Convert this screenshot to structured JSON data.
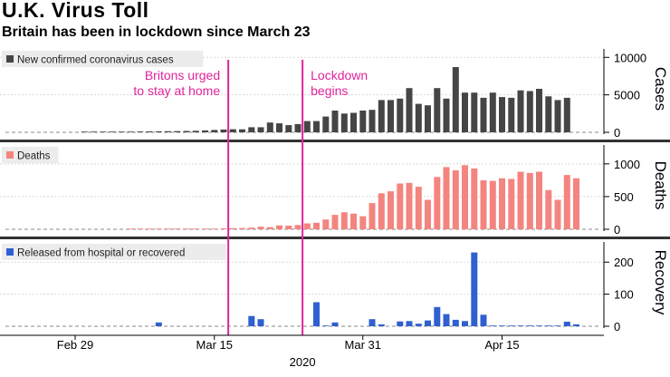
{
  "header": {
    "title": "U.K. Virus Toll",
    "subtitle": "Britain has been in lockdown since March 23"
  },
  "colors": {
    "cases": "#454545",
    "deaths": "#f4847f",
    "recovery": "#2f5fd0",
    "annotation": "#e0249a",
    "divider": "#333333",
    "grid": "#d9d9d9"
  },
  "chart_data": {
    "type": "bar",
    "x_label": "2020",
    "x_ticks": [
      {
        "label": "Feb 29",
        "day": 0
      },
      {
        "label": "Mar 15",
        "day": 15
      },
      {
        "label": "Mar 31",
        "day": 31
      },
      {
        "label": "Apr 15",
        "day": 46
      }
    ],
    "x_domain_days": [
      -4,
      56
    ],
    "annotations": [
      {
        "text_lines": [
          "Britons urged",
          "to stay at home"
        ],
        "day": 16.5
      },
      {
        "text_lines": [
          "Lockdown",
          "begins"
        ],
        "day": 24.5
      }
    ],
    "panels": [
      {
        "key": "cases",
        "ylabel": "Cases",
        "legend": "New confirmed coronavirus cases",
        "ylim": [
          0,
          11000
        ],
        "yticks": [
          {
            "v": 0,
            "label": "0"
          },
          {
            "v": 5000,
            "label": "5000"
          },
          {
            "v": 10000,
            "label": "10000"
          }
        ],
        "start_day": 1,
        "values": [
          40,
          50,
          60,
          80,
          90,
          100,
          110,
          120,
          130,
          150,
          160,
          180,
          200,
          250,
          320,
          380,
          410,
          400,
          680,
          680,
          1300,
          1200,
          950,
          1100,
          1500,
          1500,
          2100,
          2900,
          2500,
          2600,
          2900,
          3000,
          4300,
          4300,
          4500,
          5900,
          3800,
          3600,
          5900,
          4500,
          8700,
          5300,
          5300,
          4600,
          5300,
          4700,
          4600,
          5600,
          5500,
          5800,
          4800,
          4300,
          4600
        ]
      },
      {
        "key": "deaths",
        "ylabel": "Deaths",
        "legend": "Deaths",
        "ylim": [
          0,
          1150
        ],
        "yticks": [
          {
            "v": 0,
            "label": "0"
          },
          {
            "v": 500,
            "label": "500"
          },
          {
            "v": 1000,
            "label": "1000"
          }
        ],
        "start_day": 1,
        "values": [
          0,
          0,
          0,
          0,
          0,
          1,
          1,
          2,
          2,
          3,
          4,
          5,
          6,
          8,
          9,
          14,
          18,
          20,
          25,
          40,
          33,
          60,
          56,
          65,
          90,
          100,
          150,
          220,
          260,
          240,
          200,
          400,
          550,
          580,
          700,
          710,
          650,
          450,
          800,
          950,
          900,
          980,
          930,
          750,
          740,
          780,
          770,
          880,
          860,
          880,
          600,
          450,
          830,
          780
        ]
      },
      {
        "key": "recovery",
        "ylabel": "Recovery",
        "legend": "Released from hospital or recovered",
        "ylim": [
          0,
          260
        ],
        "yticks": [
          {
            "v": 0,
            "label": "0"
          },
          {
            "v": 100,
            "label": "100"
          },
          {
            "v": 200,
            "label": "200"
          }
        ],
        "start_day": 1,
        "values": [
          0,
          0,
          0,
          0,
          0,
          0,
          0,
          0,
          12,
          0,
          0,
          0,
          0,
          0,
          0,
          0,
          0,
          0,
          32,
          22,
          0,
          0,
          0,
          0,
          0,
          75,
          2,
          12,
          0,
          0,
          0,
          22,
          6,
          0,
          15,
          16,
          8,
          18,
          60,
          38,
          20,
          16,
          230,
          36,
          2,
          2,
          2,
          2,
          2,
          2,
          2,
          2,
          14,
          6
        ]
      }
    ]
  }
}
